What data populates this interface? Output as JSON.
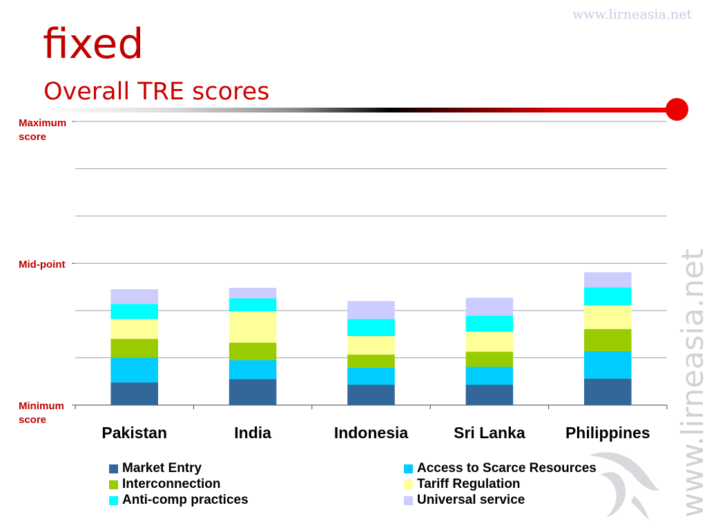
{
  "header": {
    "site_top": "www.lirneasia.net",
    "title": "fixed",
    "subtitle": "Overall TRE scores",
    "vertical_mark": "www.lirneasia.net"
  },
  "y_labels": {
    "max_line1": "Maximum",
    "max_line2": "score",
    "mid": "Mid-point",
    "min_line1": "Minimum",
    "min_line2": "score"
  },
  "colors": {
    "title": "#c00000",
    "market_entry": "#336699",
    "access": "#00ccff",
    "interconnection": "#99cc00",
    "tariff": "#ffff99",
    "anticomp": "#00ffff",
    "universal": "#ccccff"
  },
  "chart_data": {
    "type": "bar",
    "stacked": true,
    "categories": [
      "Pakistan",
      "India",
      "Indonesia",
      "Sri Lanka",
      "Philippines"
    ],
    "ylim": [
      0,
      6
    ],
    "grid": true,
    "legend_position": "bottom",
    "series": [
      {
        "name": "Market Entry",
        "color": "#336699",
        "values": [
          0.48,
          0.55,
          0.43,
          0.43,
          0.56
        ]
      },
      {
        "name": "Access to Scarce Resources",
        "color": "#00ccff",
        "values": [
          0.52,
          0.4,
          0.36,
          0.38,
          0.58
        ]
      },
      {
        "name": "Interconnection",
        "color": "#99cc00",
        "values": [
          0.4,
          0.37,
          0.28,
          0.32,
          0.47
        ]
      },
      {
        "name": "Tariff Regulation",
        "color": "#ffff99",
        "values": [
          0.42,
          0.66,
          0.39,
          0.42,
          0.5
        ]
      },
      {
        "name": "Anti-comp practices",
        "color": "#00ffff",
        "values": [
          0.32,
          0.28,
          0.36,
          0.34,
          0.38
        ]
      },
      {
        "name": "Universal service",
        "color": "#ccccff",
        "values": [
          0.31,
          0.22,
          0.38,
          0.38,
          0.32
        ]
      }
    ]
  }
}
